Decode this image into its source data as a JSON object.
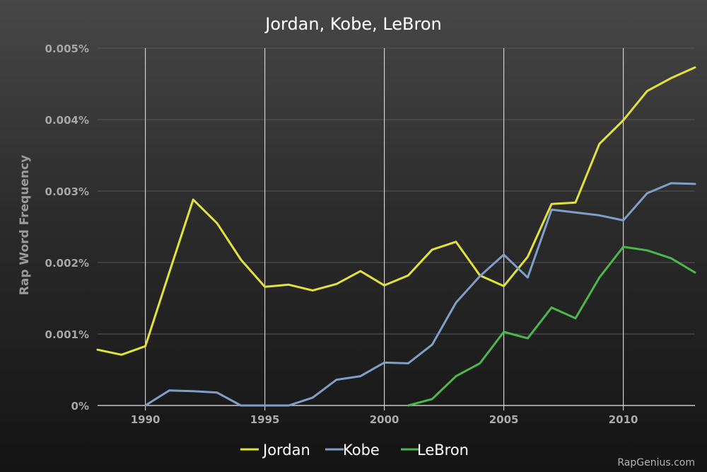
{
  "chart_data": {
    "type": "line",
    "title": "Jordan, Kobe, LeBron",
    "xlabel": "",
    "ylabel": "Rap Word Frequency",
    "xlim": [
      1988,
      2013
    ],
    "ylim": [
      0,
      0.005
    ],
    "x_ticks": [
      1990,
      1995,
      2000,
      2005,
      2010
    ],
    "x_tick_labels": [
      "1990",
      "1995",
      "2000",
      "2005",
      "2010"
    ],
    "y_ticks": [
      0,
      0.001,
      0.002,
      0.003,
      0.004,
      0.005
    ],
    "y_tick_labels": [
      "0%",
      "0.001%",
      "0.002%",
      "0.003%",
      "0.004%",
      "0.005%"
    ],
    "grid": "vertical",
    "legend_position": "bottom-center",
    "series": [
      {
        "name": "Jordan",
        "color": "#e2e23c",
        "x": [
          1988,
          1989,
          1990,
          1991,
          1992,
          1993,
          1994,
          1995,
          1996,
          1997,
          1998,
          1999,
          2000,
          2001,
          2002,
          2003,
          2004,
          2005,
          2006,
          2007,
          2008,
          2009,
          2010,
          2011,
          2012,
          2013
        ],
        "values": [
          0.00078,
          0.00071,
          0.00083,
          0.00186,
          0.00288,
          0.00255,
          0.00204,
          0.00166,
          0.00169,
          0.00161,
          0.0017,
          0.00188,
          0.00168,
          0.00182,
          0.00218,
          0.00229,
          0.00182,
          0.00167,
          0.00208,
          0.00282,
          0.00284,
          0.00366,
          0.00399,
          0.0044,
          0.00458,
          0.00473
        ]
      },
      {
        "name": "Kobe",
        "color": "#7f9fc8",
        "x": [
          1990,
          1991,
          1992,
          1993,
          1994,
          1995,
          1996,
          1997,
          1998,
          1999,
          2000,
          2001,
          2002,
          2003,
          2004,
          2005,
          2006,
          2007,
          2008,
          2009,
          2010,
          2011,
          2012,
          2013
        ],
        "values": [
          0,
          0.00021,
          0.0002,
          0.00018,
          0,
          0,
          0,
          0.00011,
          0.00036,
          0.00041,
          0.0006,
          0.00059,
          0.00085,
          0.00144,
          0.00181,
          0.00211,
          0.00179,
          0.00274,
          0.0027,
          0.00266,
          0.00259,
          0.00297,
          0.00311,
          0.0031
        ]
      },
      {
        "name": "LeBron",
        "color": "#4db64d",
        "x": [
          2001,
          2002,
          2003,
          2004,
          2005,
          2006,
          2007,
          2008,
          2009,
          2010,
          2011,
          2012,
          2013
        ],
        "values": [
          0,
          9e-05,
          0.00041,
          0.00059,
          0.00103,
          0.00094,
          0.00137,
          0.00122,
          0.00179,
          0.00222,
          0.00217,
          0.00206,
          0.00186
        ]
      }
    ]
  },
  "credit": "RapGenius.com"
}
